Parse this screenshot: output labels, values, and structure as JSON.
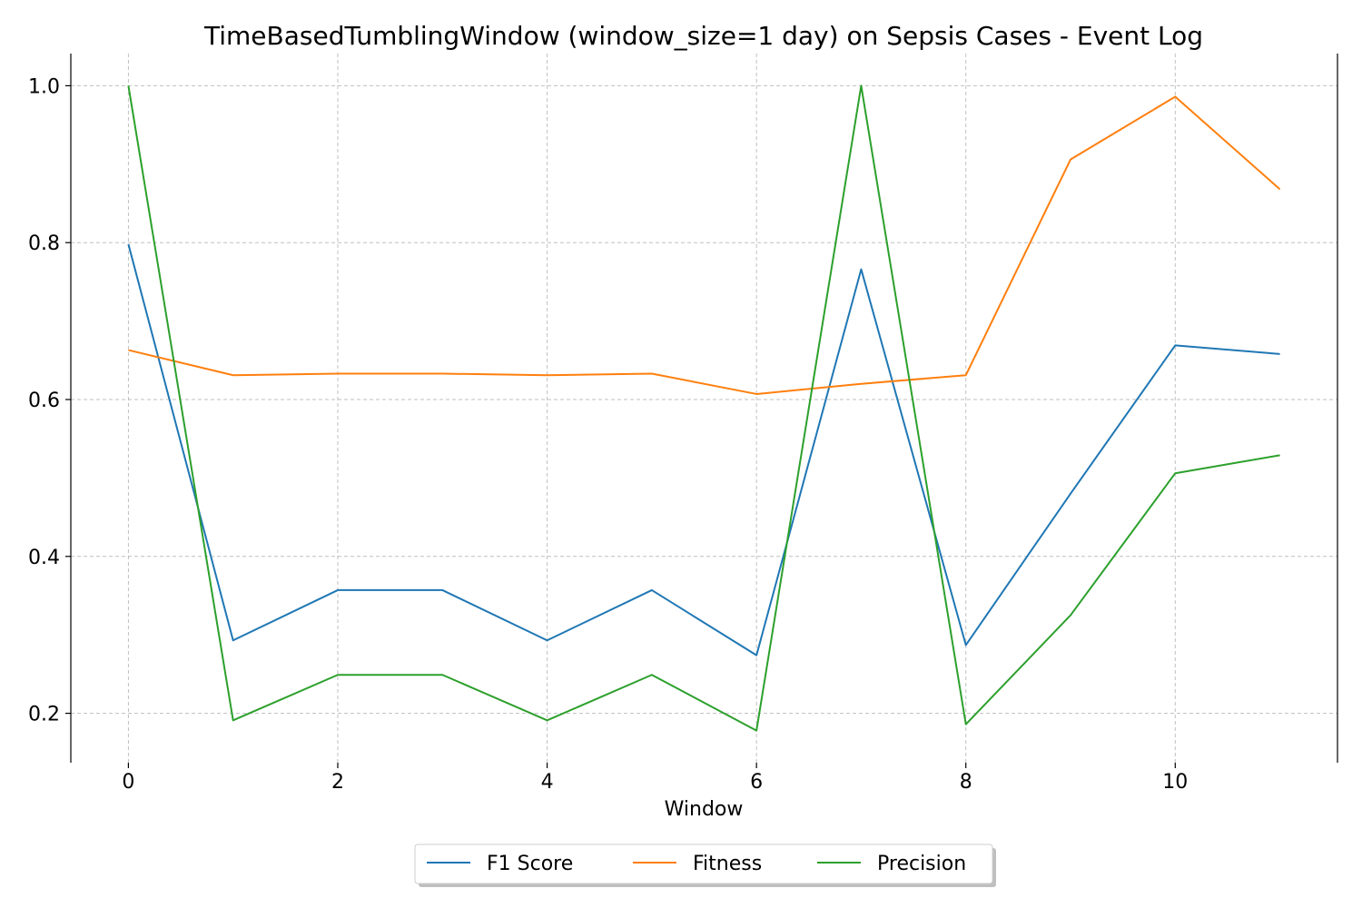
{
  "chart_data": {
    "type": "line",
    "title": "TimeBasedTumblingWindow (window_size=1 day) on Sepsis Cases - Event Log",
    "xlabel": "Window",
    "ylabel": "",
    "x": [
      0,
      1,
      2,
      3,
      4,
      5,
      6,
      7,
      8,
      9,
      10,
      11
    ],
    "xlim": [
      -0.55,
      11.55
    ],
    "ylim": [
      0.137,
      1.041
    ],
    "xticks": [
      0,
      2,
      4,
      6,
      8,
      10
    ],
    "xtick_labels": [
      "0",
      "2",
      "4",
      "6",
      "8",
      "10"
    ],
    "yticks": [
      0.2,
      0.4,
      0.6,
      0.8,
      1.0
    ],
    "ytick_labels": [
      "0.2",
      "0.4",
      "0.6",
      "0.8",
      "1.0"
    ],
    "grid": true,
    "legend_position": "bottom-center",
    "series": [
      {
        "name": "F1 Score",
        "color": "#1f77b4",
        "values": [
          0.798,
          0.293,
          0.357,
          0.357,
          0.293,
          0.357,
          0.274,
          0.766,
          0.287,
          0.48,
          0.669,
          0.658
        ]
      },
      {
        "name": "Fitness",
        "color": "#ff7f0e",
        "values": [
          0.663,
          0.631,
          0.633,
          0.633,
          0.631,
          0.633,
          0.607,
          0.62,
          0.631,
          0.906,
          0.986,
          0.868
        ]
      },
      {
        "name": "Precision",
        "color": "#2ca02c",
        "values": [
          1.0,
          0.191,
          0.249,
          0.249,
          0.191,
          0.249,
          0.178,
          1.0,
          0.186,
          0.325,
          0.506,
          0.529
        ]
      }
    ]
  }
}
